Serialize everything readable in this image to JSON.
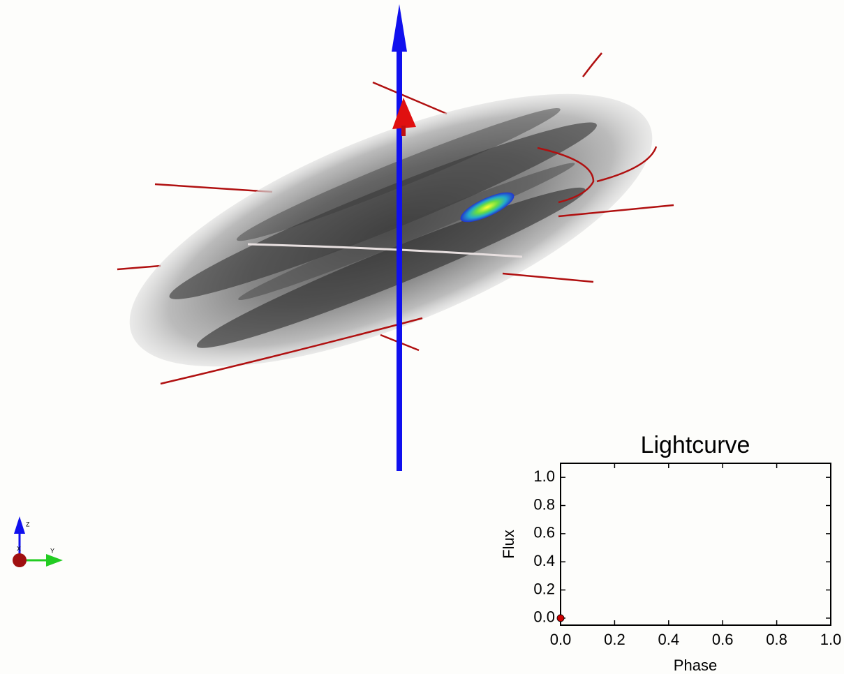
{
  "scene": {
    "triad_labels": [
      "Z",
      "X",
      "Y"
    ]
  },
  "chart_data": {
    "type": "scatter",
    "title": "Lightcurve",
    "xlabel": "Phase",
    "ylabel": "Flux",
    "x": [
      0
    ],
    "series": [
      {
        "color": "#cc0000",
        "values": [
          0
        ]
      }
    ],
    "xlim": [
      0,
      1
    ],
    "ylim": [
      -0.05,
      1.1
    ],
    "xticks": [
      {
        "value": 0,
        "label": "0.0"
      },
      0.2,
      0.4,
      0.6,
      0.8,
      {
        "value": 1,
        "label": "1.0"
      }
    ],
    "yticks": [
      {
        "value": 0,
        "label": "0.0"
      },
      0.2,
      0.4,
      0.6,
      0.8,
      {
        "value": 1,
        "label": "1.0"
      }
    ]
  }
}
